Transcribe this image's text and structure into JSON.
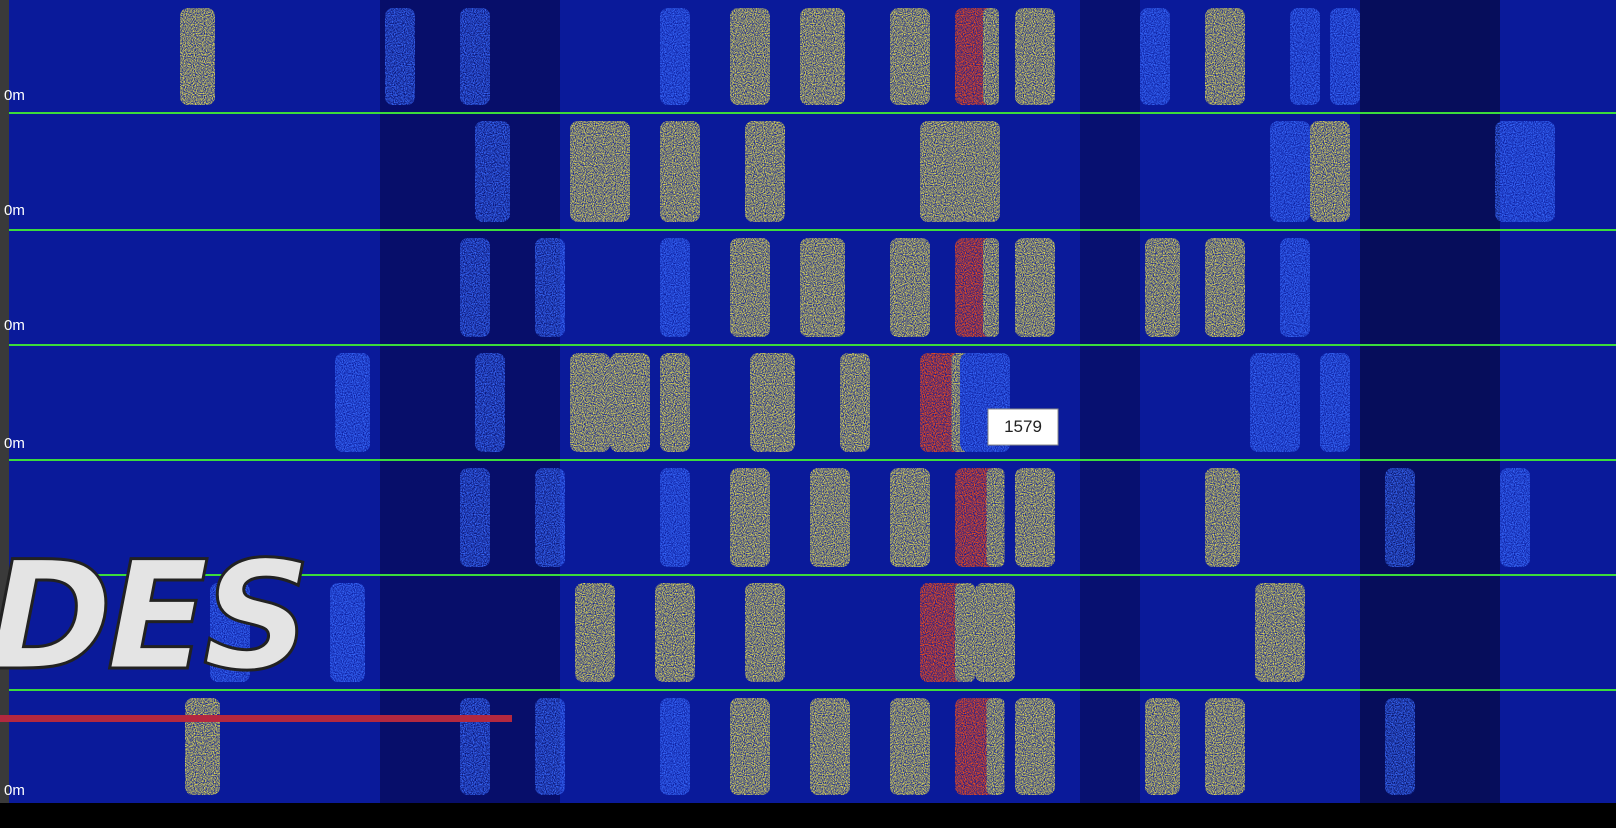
{
  "overlay_title": "DES",
  "tooltip": "1579",
  "band_labels": [
    "0m",
    "0m",
    "0m",
    "0m",
    "0m"
  ]
}
